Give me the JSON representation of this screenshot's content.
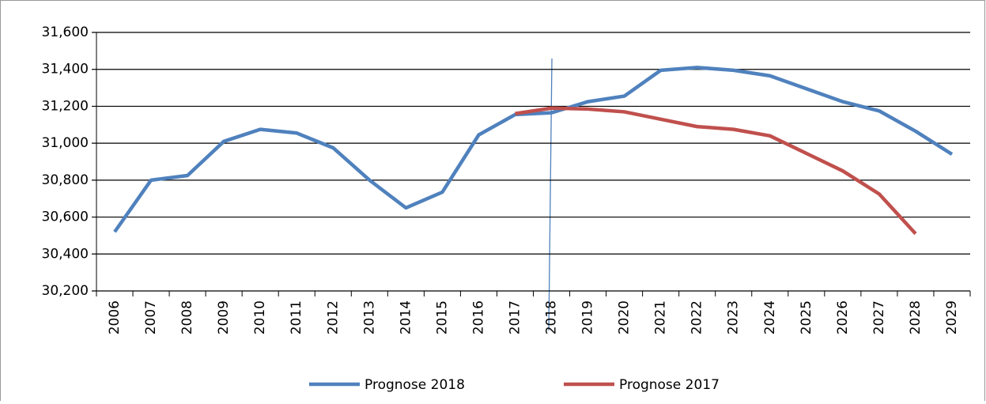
{
  "chart_data": {
    "type": "line",
    "categories": [
      "2006",
      "2007",
      "2008",
      "2009",
      "2010",
      "2011",
      "2012",
      "2013",
      "2014",
      "2015",
      "2016",
      "2017",
      "2018",
      "2019",
      "2020",
      "2021",
      "2022",
      "2023",
      "2024",
      "2025",
      "2026",
      "2027",
      "2028",
      "2029"
    ],
    "series": [
      {
        "name": "Prognose 2018",
        "color": "#4f81bd",
        "values": [
          30520,
          30800,
          30825,
          31010,
          31075,
          31055,
          30975,
          30800,
          30650,
          30735,
          31045,
          31155,
          31165,
          31225,
          31255,
          31395,
          31410,
          31395,
          31365,
          31295,
          31225,
          31175,
          31065,
          30940
        ]
      },
      {
        "name": "Prognose 2017",
        "color": "#c0504d",
        "values": [
          null,
          null,
          null,
          null,
          null,
          null,
          null,
          null,
          null,
          null,
          null,
          31160,
          31190,
          31185,
          31170,
          31130,
          31090,
          31075,
          31040,
          30945,
          30850,
          30725,
          30510,
          null
        ]
      }
    ],
    "ylim": [
      30200,
      31600
    ],
    "yticks": [
      {
        "value": 30200,
        "label": "30,200"
      },
      {
        "value": 30400,
        "label": "30,400"
      },
      {
        "value": 30600,
        "label": "30,600"
      },
      {
        "value": 30800,
        "label": "30,800"
      },
      {
        "value": 31000,
        "label": "31,000"
      },
      {
        "value": 31200,
        "label": "31,200"
      },
      {
        "value": 31400,
        "label": "31,400"
      },
      {
        "value": 31600,
        "label": "31,600"
      }
    ],
    "grid": true,
    "legend": "bottom"
  }
}
